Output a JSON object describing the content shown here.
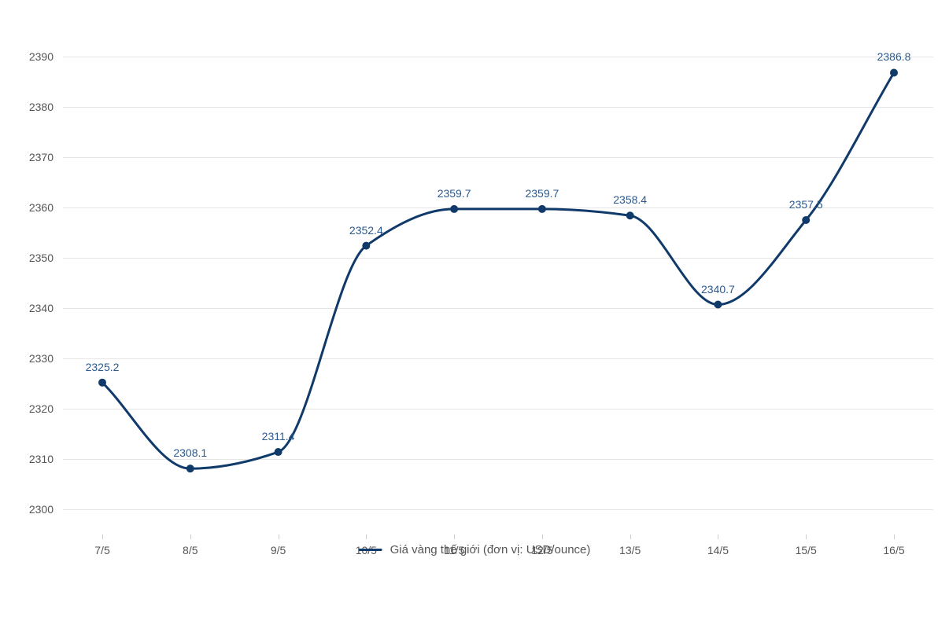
{
  "chart": {
    "type": "line",
    "categories": [
      "7/5",
      "8/5",
      "9/5",
      "10/5",
      "11/5",
      "12/5",
      "13/5",
      "14/5",
      "15/5",
      "16/5"
    ],
    "values": [
      2325.2,
      2308.1,
      2311.4,
      2352.4,
      2359.7,
      2359.7,
      2358.4,
      2340.7,
      2357.5,
      2386.8
    ],
    "value_labels": [
      "2325.2",
      "2308.1",
      "2311.4",
      "2352.4",
      "2359.7",
      "2359.7",
      "2358.4",
      "2340.7",
      "2357.5",
      "2386.8"
    ],
    "line_color": "#103a6a",
    "line_width": 3,
    "marker_color": "#103a6a",
    "marker_radius": 5,
    "data_label_color": "#2a5a8f",
    "data_label_fontsize": 14,
    "ylim": [
      2295,
      2395
    ],
    "yticks": [
      2300,
      2310,
      2320,
      2330,
      2340,
      2350,
      2360,
      2370,
      2380,
      2390
    ],
    "ytick_labels": [
      "2300",
      "2310",
      "2320",
      "2330",
      "2340",
      "2350",
      "2360",
      "2370",
      "2380",
      "2390"
    ],
    "grid_color": "#e5e5e5",
    "axis_label_color": "#555555",
    "axis_label_fontsize": 14,
    "background_color": "#ffffff",
    "legend": {
      "label": "Giá vàng thế giới (đơn vị: USD/ounce)",
      "color": "#103a6a",
      "text_color": "#555555",
      "fontsize": 15
    },
    "smoothing": "monotone"
  }
}
